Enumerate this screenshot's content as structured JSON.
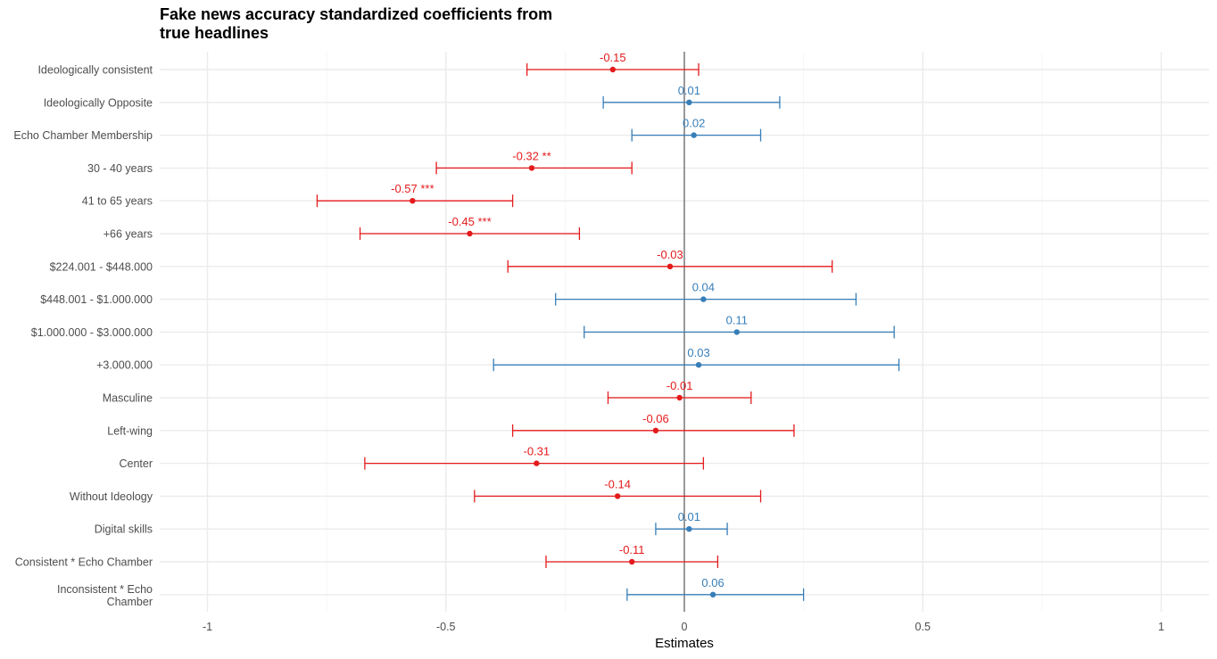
{
  "chart_data": {
    "type": "forest",
    "title": "Fake news accuracy standardized coefficients from true headlines",
    "title_lines": [
      "Fake news accuracy standardized coefficients from",
      "true headlines"
    ],
    "xlabel": "Estimates",
    "ylabel": "",
    "xlim": [
      -1.05,
      1.1
    ],
    "x_ticks": [
      -1,
      -0.5,
      0,
      0.5,
      1
    ],
    "x_tick_labels": [
      "-1",
      "-0.5",
      "0",
      "0.5",
      "1"
    ],
    "grid": true,
    "legend": "none",
    "colors": {
      "negative": "#e41a1c",
      "positive": "#377eb8",
      "zero_line": "#4d4d4d"
    },
    "terms": [
      {
        "label": "Ideologically consistent",
        "estimate": -0.15,
        "ci_low": -0.33,
        "ci_high": 0.03,
        "value_label": "-0.15"
      },
      {
        "label": "Ideologically Opposite",
        "estimate": 0.01,
        "ci_low": -0.17,
        "ci_high": 0.2,
        "value_label": "0.01"
      },
      {
        "label": "Echo Chamber Membership",
        "estimate": 0.02,
        "ci_low": -0.11,
        "ci_high": 0.16,
        "value_label": "0.02"
      },
      {
        "label": "30 - 40 years",
        "estimate": -0.32,
        "ci_low": -0.52,
        "ci_high": -0.11,
        "value_label": "-0.32 **"
      },
      {
        "label": "41 to 65 years",
        "estimate": -0.57,
        "ci_low": -0.77,
        "ci_high": -0.36,
        "value_label": "-0.57 ***"
      },
      {
        "label": "+66 years",
        "estimate": -0.45,
        "ci_low": -0.68,
        "ci_high": -0.22,
        "value_label": "-0.45 ***"
      },
      {
        "label": "$224.001 - $448.000",
        "estimate": -0.03,
        "ci_low": -0.37,
        "ci_high": 0.31,
        "value_label": "-0.03"
      },
      {
        "label": "$448.001 - $1.000.000",
        "estimate": 0.04,
        "ci_low": -0.27,
        "ci_high": 0.36,
        "value_label": "0.04"
      },
      {
        "label": "$1.000.000 - $3.000.000",
        "estimate": 0.11,
        "ci_low": -0.21,
        "ci_high": 0.44,
        "value_label": "0.11"
      },
      {
        "label": "+3.000.000",
        "estimate": 0.03,
        "ci_low": -0.4,
        "ci_high": 0.45,
        "value_label": "0.03"
      },
      {
        "label": "Masculine",
        "estimate": -0.01,
        "ci_low": -0.16,
        "ci_high": 0.14,
        "value_label": "-0.01"
      },
      {
        "label": "Left-wing",
        "estimate": -0.06,
        "ci_low": -0.36,
        "ci_high": 0.23,
        "value_label": "-0.06"
      },
      {
        "label": "Center",
        "estimate": -0.31,
        "ci_low": -0.67,
        "ci_high": 0.04,
        "value_label": "-0.31"
      },
      {
        "label": "Without Ideology",
        "estimate": -0.14,
        "ci_low": -0.44,
        "ci_high": 0.16,
        "value_label": "-0.14"
      },
      {
        "label": "Digital skills",
        "estimate": 0.01,
        "ci_low": -0.06,
        "ci_high": 0.09,
        "value_label": "0.01"
      },
      {
        "label": "Consistent * Echo Chamber",
        "estimate": -0.11,
        "ci_low": -0.29,
        "ci_high": 0.07,
        "value_label": "-0.11"
      },
      {
        "label": "Inconsistent * Echo Chamber",
        "estimate": 0.06,
        "ci_low": -0.12,
        "ci_high": 0.25,
        "value_label": "0.06",
        "label_lines": [
          "Inconsistent * Echo",
          "Chamber"
        ]
      }
    ]
  }
}
